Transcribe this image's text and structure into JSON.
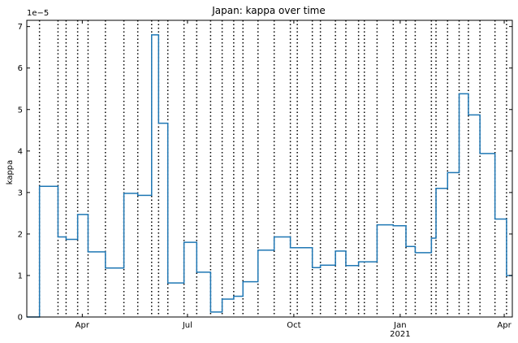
{
  "chart_data": {
    "type": "line",
    "drawstyle": "steps-post",
    "title": "Japan: kappa over time",
    "xlabel": "",
    "ylabel": "kappa",
    "y_scale_label": "1e−5",
    "ylim": [
      0,
      7.15
    ],
    "y_ticks": [
      0,
      1,
      2,
      3,
      4,
      5,
      6,
      7
    ],
    "xlim": [
      "2020-02-13",
      "2021-04-08"
    ],
    "x_ticks": [
      {
        "date": "2020-04-01",
        "label": "Apr",
        "sublabel": ""
      },
      {
        "date": "2020-07-01",
        "label": "Jul",
        "sublabel": ""
      },
      {
        "date": "2020-10-01",
        "label": "Oct",
        "sublabel": ""
      },
      {
        "date": "2021-01-01",
        "label": "Jan",
        "sublabel": "2021"
      },
      {
        "date": "2021-04-01",
        "label": "Apr",
        "sublabel": ""
      }
    ],
    "grid": false,
    "line_color": "#1f77b4",
    "breakpoint_line_color": "#000000",
    "breakpoints": [
      "2020-02-24",
      "2020-03-11",
      "2020-03-18",
      "2020-03-28",
      "2020-04-06",
      "2020-04-21",
      "2020-05-07",
      "2020-05-19",
      "2020-05-31",
      "2020-06-06",
      "2020-06-14",
      "2020-06-28",
      "2020-07-09",
      "2020-07-21",
      "2020-07-31",
      "2020-08-10",
      "2020-08-18",
      "2020-08-31",
      "2020-09-14",
      "2020-09-28",
      "2020-10-04",
      "2020-10-17",
      "2020-10-24",
      "2020-11-06",
      "2020-11-15",
      "2020-11-26",
      "2020-12-01",
      "2020-12-12",
      "2020-12-26",
      "2021-01-06",
      "2021-01-14",
      "2021-01-28",
      "2021-02-01",
      "2021-02-11",
      "2021-02-21",
      "2021-03-01",
      "2021-03-11",
      "2021-03-24",
      "2021-04-03"
    ],
    "series": [
      {
        "name": "",
        "x": [
          "2020-02-13",
          "2020-02-24",
          "2020-03-11",
          "2020-03-18",
          "2020-03-28",
          "2020-04-06",
          "2020-04-21",
          "2020-05-07",
          "2020-05-19",
          "2020-05-31",
          "2020-06-06",
          "2020-06-14",
          "2020-06-28",
          "2020-07-09",
          "2020-07-21",
          "2020-07-31",
          "2020-08-10",
          "2020-08-18",
          "2020-08-31",
          "2020-09-14",
          "2020-09-28",
          "2020-10-04",
          "2020-10-17",
          "2020-10-24",
          "2020-11-06",
          "2020-11-15",
          "2020-11-26",
          "2020-12-01",
          "2020-12-12",
          "2020-12-26",
          "2021-01-06",
          "2021-01-14",
          "2021-01-28",
          "2021-02-01",
          "2021-02-11",
          "2021-02-21",
          "2021-03-01",
          "2021-03-11",
          "2021-03-24",
          "2021-04-03",
          "2021-04-08"
        ],
        "y": [
          0.0,
          3.15,
          1.93,
          1.87,
          2.47,
          1.57,
          1.18,
          2.98,
          2.93,
          6.8,
          4.67,
          0.82,
          1.8,
          1.08,
          0.12,
          0.43,
          0.5,
          0.85,
          1.61,
          1.93,
          1.67,
          1.67,
          1.19,
          1.25,
          1.59,
          1.24,
          1.33,
          1.33,
          2.22,
          2.2,
          1.7,
          1.55,
          1.9,
          3.1,
          3.48,
          5.38,
          4.87,
          3.94,
          2.36,
          1.0,
          1.0
        ]
      }
    ]
  }
}
